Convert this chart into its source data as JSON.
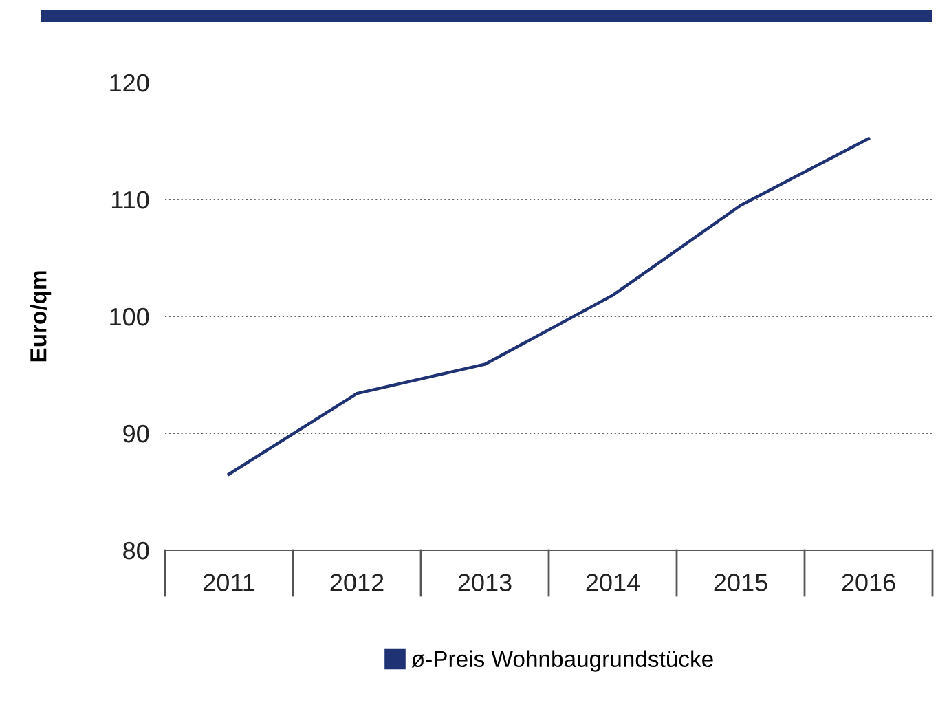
{
  "chart_data": {
    "type": "line",
    "ylabel": "Euro/qm",
    "categories": [
      "2011",
      "2012",
      "2013",
      "2014",
      "2015",
      "2016"
    ],
    "series": [
      {
        "name": "ø-Preis Wohnbaugrundstücke",
        "color": "#1f3374",
        "values": [
          86.5,
          93.4,
          95.9,
          101.8,
          109.5,
          115.2
        ]
      }
    ],
    "ylim": [
      80,
      120
    ],
    "yticks": [
      80,
      90,
      100,
      110,
      120
    ],
    "grid": "y",
    "legend": "bottom",
    "marker": "none",
    "line_style": "solid"
  }
}
